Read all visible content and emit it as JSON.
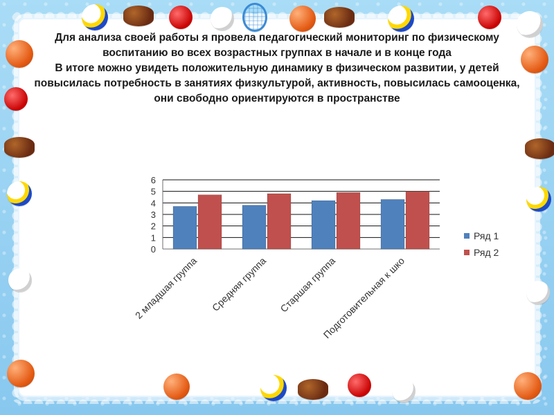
{
  "text": {
    "title": "Для анализа своей работы я провела педагогический мониторинг по физическому воспитанию во всех возрастных группах в начале и в конце года\nВ итоге можно увидеть положительную динамику в физическом развитии, у детей повысилась потребность в занятиях физкультурой, активность, повысилась самооценка, они свободно ориентируются в пространстве"
  },
  "theme": {
    "series_colors": [
      "#4f81bd",
      "#c0504d"
    ],
    "bg": "#a9dcf6"
  },
  "decorations": [
    "basketball-icon",
    "volleyball-icon",
    "soccer-ball-icon",
    "rugby-ball-icon",
    "ping-pong-paddle-icon",
    "tennis-racket-icon"
  ],
  "chart_data": {
    "type": "bar",
    "categories": [
      "2 младшая группа",
      "Средняя группа",
      "Старшая группа",
      "Подготовительная к шко"
    ],
    "series": [
      {
        "name": "Ряд 1",
        "values": [
          3.7,
          3.8,
          4.2,
          4.3
        ]
      },
      {
        "name": "Ряд 2",
        "values": [
          4.7,
          4.8,
          4.9,
          5.0
        ]
      }
    ],
    "ylim": [
      0,
      6
    ],
    "yticks": [
      0,
      1,
      2,
      3,
      4,
      5,
      6
    ],
    "grid": true,
    "legend_position": "right"
  }
}
